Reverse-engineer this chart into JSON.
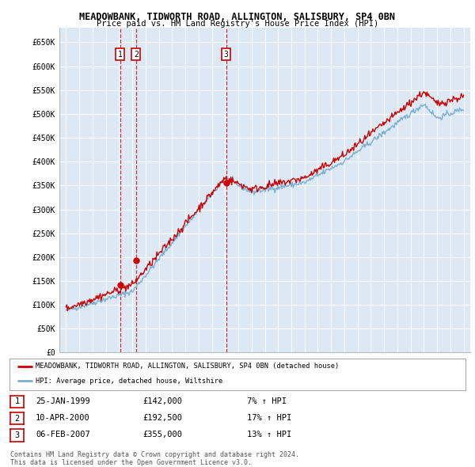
{
  "title": "MEADOWBANK, TIDWORTH ROAD, ALLINGTON, SALISBURY, SP4 0BN",
  "subtitle": "Price paid vs. HM Land Registry's House Price Index (HPI)",
  "ylabel_ticks": [
    "£0",
    "£50K",
    "£100K",
    "£150K",
    "£200K",
    "£250K",
    "£300K",
    "£350K",
    "£400K",
    "£450K",
    "£500K",
    "£550K",
    "£600K",
    "£650K"
  ],
  "ytick_vals": [
    0,
    50000,
    100000,
    150000,
    200000,
    250000,
    300000,
    350000,
    400000,
    450000,
    500000,
    550000,
    600000,
    650000
  ],
  "ylim": [
    0,
    680000
  ],
  "xlim_start": 1994.5,
  "xlim_end": 2025.5,
  "background_color": "#dce9f5",
  "grid_color": "#ffffff",
  "red_color": "#cc0000",
  "blue_color": "#7aafd4",
  "transaction_dates": [
    1999.07,
    2000.28,
    2007.09
  ],
  "transaction_prices": [
    142000,
    192500,
    355000
  ],
  "transaction_labels": [
    "1",
    "2",
    "3"
  ],
  "legend_label_red": "MEADOWBANK, TIDWORTH ROAD, ALLINGTON, SALISBURY, SP4 0BN (detached house)",
  "legend_label_blue": "HPI: Average price, detached house, Wiltshire",
  "table_rows": [
    [
      "1",
      "25-JAN-1999",
      "£142,000",
      "7% ↑ HPI"
    ],
    [
      "2",
      "10-APR-2000",
      "£192,500",
      "17% ↑ HPI"
    ],
    [
      "3",
      "06-FEB-2007",
      "£355,000",
      "13% ↑ HPI"
    ]
  ],
  "footer": "Contains HM Land Registry data © Crown copyright and database right 2024.\nThis data is licensed under the Open Government Licence v3.0."
}
